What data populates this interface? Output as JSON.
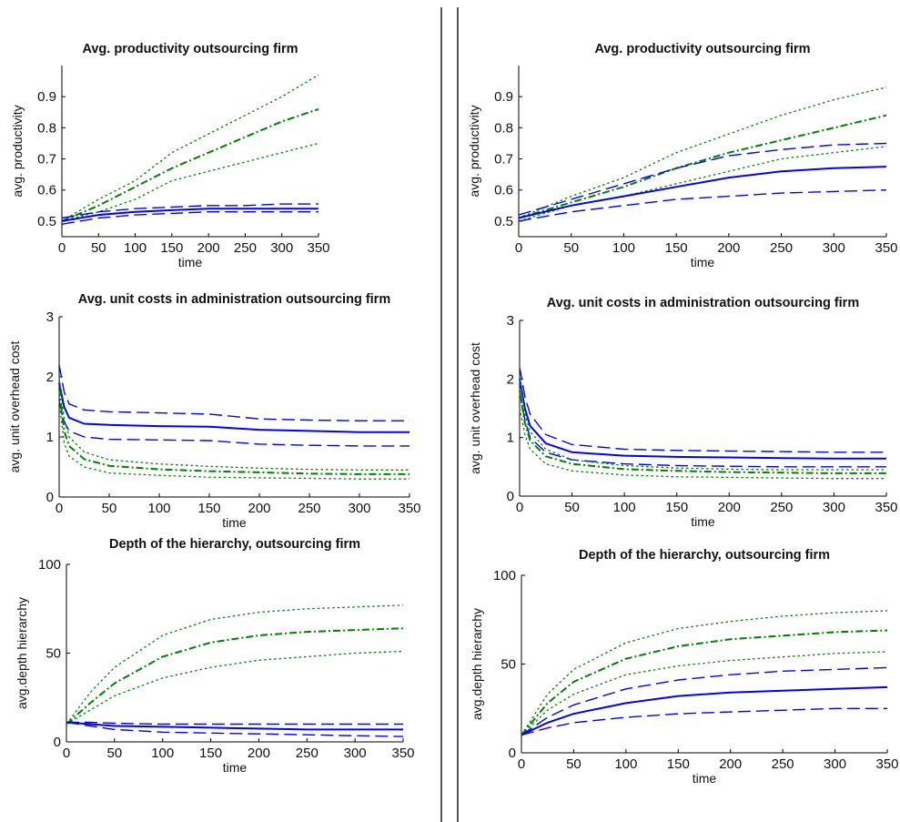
{
  "colors": {
    "model_a": "#0000ff",
    "model_b": "#008000",
    "separator": "#555555"
  },
  "chart_data": [
    {
      "type": "line",
      "panel": "left-top",
      "title": "Avg. productivity outsourcing firm",
      "xlabel": "time",
      "ylabel": "avg. productivity",
      "xlim": [
        0,
        350
      ],
      "ylim": [
        0.45,
        1.0
      ],
      "xticks": [
        0,
        50,
        100,
        150,
        200,
        250,
        300,
        350
      ],
      "yticks": [
        0.5,
        0.6,
        0.7,
        0.8,
        0.9
      ],
      "grid": false,
      "x": [
        0,
        50,
        100,
        150,
        200,
        250,
        300,
        350
      ],
      "series": [
        {
          "color": "#008000",
          "style": "dotted",
          "values": [
            0.5,
            0.57,
            0.63,
            0.72,
            0.78,
            0.84,
            0.9,
            0.97
          ]
        },
        {
          "color": "#008000",
          "style": "dashdot",
          "values": [
            0.5,
            0.55,
            0.61,
            0.67,
            0.72,
            0.77,
            0.82,
            0.86
          ]
        },
        {
          "color": "#008000",
          "style": "dotted",
          "values": [
            0.5,
            0.53,
            0.57,
            0.63,
            0.66,
            0.69,
            0.72,
            0.75
          ]
        },
        {
          "color": "#0000ff",
          "style": "dashed",
          "values": [
            0.51,
            0.53,
            0.54,
            0.545,
            0.55,
            0.55,
            0.555,
            0.555
          ]
        },
        {
          "color": "#0000ff",
          "style": "solid",
          "values": [
            0.5,
            0.52,
            0.53,
            0.535,
            0.54,
            0.54,
            0.54,
            0.54
          ]
        },
        {
          "color": "#0000ff",
          "style": "dashed",
          "values": [
            0.49,
            0.51,
            0.52,
            0.525,
            0.53,
            0.53,
            0.53,
            0.53
          ]
        }
      ]
    },
    {
      "type": "line",
      "panel": "right-top",
      "title": "Avg. productivity outsourcing firm",
      "xlabel": "time",
      "ylabel": "avg. productivity",
      "xlim": [
        0,
        350
      ],
      "ylim": [
        0.45,
        1.0
      ],
      "xticks": [
        0,
        50,
        100,
        150,
        200,
        250,
        300,
        350
      ],
      "yticks": [
        0.5,
        0.6,
        0.7,
        0.8,
        0.9
      ],
      "grid": false,
      "x": [
        0,
        50,
        100,
        150,
        200,
        250,
        300,
        350
      ],
      "series": [
        {
          "color": "#008000",
          "style": "dotted",
          "values": [
            0.51,
            0.58,
            0.64,
            0.72,
            0.78,
            0.84,
            0.89,
            0.93
          ]
        },
        {
          "color": "#008000",
          "style": "dashdot",
          "values": [
            0.51,
            0.56,
            0.61,
            0.67,
            0.72,
            0.76,
            0.8,
            0.84
          ]
        },
        {
          "color": "#0000ff",
          "style": "dashed",
          "values": [
            0.52,
            0.57,
            0.62,
            0.67,
            0.71,
            0.73,
            0.745,
            0.75
          ]
        },
        {
          "color": "#008000",
          "style": "dotted",
          "values": [
            0.5,
            0.55,
            0.58,
            0.62,
            0.66,
            0.7,
            0.72,
            0.74
          ]
        },
        {
          "color": "#0000ff",
          "style": "solid",
          "values": [
            0.51,
            0.55,
            0.58,
            0.61,
            0.64,
            0.66,
            0.67,
            0.675
          ]
        },
        {
          "color": "#0000ff",
          "style": "dashed",
          "values": [
            0.5,
            0.53,
            0.55,
            0.57,
            0.58,
            0.59,
            0.595,
            0.6
          ]
        }
      ]
    },
    {
      "type": "line",
      "panel": "left-mid",
      "title": "Avg. unit costs in administration outsourcing firm",
      "xlabel": "time",
      "ylabel": "avg. unit overhead cost",
      "xlim": [
        0,
        350
      ],
      "ylim": [
        0,
        3
      ],
      "xticks": [
        0,
        50,
        100,
        150,
        200,
        250,
        300,
        350
      ],
      "yticks": [
        0,
        1,
        2,
        3
      ],
      "grid": false,
      "x": [
        0,
        5,
        10,
        25,
        50,
        100,
        150,
        200,
        250,
        300,
        350
      ],
      "series": [
        {
          "color": "#0000ff",
          "style": "dashed",
          "values": [
            2.2,
            1.75,
            1.55,
            1.45,
            1.42,
            1.4,
            1.38,
            1.3,
            1.28,
            1.27,
            1.27
          ]
        },
        {
          "color": "#0000ff",
          "style": "solid",
          "values": [
            1.9,
            1.5,
            1.32,
            1.22,
            1.2,
            1.18,
            1.17,
            1.12,
            1.1,
            1.08,
            1.08
          ]
        },
        {
          "color": "#0000ff",
          "style": "dashed",
          "values": [
            1.6,
            1.25,
            1.1,
            1.0,
            0.96,
            0.95,
            0.94,
            0.88,
            0.86,
            0.85,
            0.85
          ]
        },
        {
          "color": "#008000",
          "style": "dotted",
          "values": [
            2.0,
            1.3,
            1.0,
            0.75,
            0.62,
            0.55,
            0.51,
            0.48,
            0.46,
            0.45,
            0.45
          ]
        },
        {
          "color": "#008000",
          "style": "dashdot",
          "values": [
            1.8,
            1.1,
            0.85,
            0.63,
            0.52,
            0.46,
            0.43,
            0.41,
            0.39,
            0.38,
            0.38
          ]
        },
        {
          "color": "#008000",
          "style": "dotted",
          "values": [
            1.6,
            0.9,
            0.68,
            0.5,
            0.4,
            0.36,
            0.33,
            0.32,
            0.31,
            0.3,
            0.3
          ]
        }
      ]
    },
    {
      "type": "line",
      "panel": "right-mid",
      "title": "Avg. unit costs in administration outsourcing firm",
      "xlabel": "time",
      "ylabel": "avg. unit overhead cost",
      "xlim": [
        0,
        350
      ],
      "ylim": [
        0,
        3
      ],
      "xticks": [
        0,
        50,
        100,
        150,
        200,
        250,
        300,
        350
      ],
      "yticks": [
        0,
        1,
        2,
        3
      ],
      "grid": false,
      "x": [
        0,
        5,
        10,
        25,
        50,
        100,
        150,
        200,
        250,
        300,
        350
      ],
      "series": [
        {
          "color": "#0000ff",
          "style": "dashed",
          "values": [
            2.2,
            1.7,
            1.4,
            1.05,
            0.88,
            0.8,
            0.78,
            0.77,
            0.76,
            0.75,
            0.75
          ]
        },
        {
          "color": "#0000ff",
          "style": "solid",
          "values": [
            2.0,
            1.5,
            1.2,
            0.9,
            0.75,
            0.69,
            0.67,
            0.66,
            0.65,
            0.64,
            0.64
          ]
        },
        {
          "color": "#0000ff",
          "style": "dashed",
          "values": [
            1.8,
            1.3,
            1.0,
            0.75,
            0.62,
            0.55,
            0.52,
            0.51,
            0.5,
            0.5,
            0.5
          ]
        },
        {
          "color": "#008000",
          "style": "dotted",
          "values": [
            2.0,
            1.4,
            1.1,
            0.8,
            0.62,
            0.52,
            0.48,
            0.46,
            0.45,
            0.45,
            0.45
          ]
        },
        {
          "color": "#008000",
          "style": "dashdot",
          "values": [
            1.8,
            1.25,
            0.95,
            0.68,
            0.55,
            0.46,
            0.43,
            0.41,
            0.4,
            0.39,
            0.39
          ]
        },
        {
          "color": "#008000",
          "style": "dotted",
          "values": [
            1.5,
            1.05,
            0.8,
            0.55,
            0.43,
            0.36,
            0.33,
            0.32,
            0.31,
            0.3,
            0.3
          ]
        }
      ]
    },
    {
      "type": "line",
      "panel": "left-bottom",
      "title": "Depth of the hierarchy, outsourcing firm",
      "xlabel": "time",
      "ylabel": "avg.depth hierarchy",
      "xlim": [
        0,
        350
      ],
      "ylim": [
        0,
        100
      ],
      "xticks": [
        0,
        50,
        100,
        150,
        200,
        250,
        300,
        350
      ],
      "yticks": [
        0,
        50,
        100
      ],
      "grid": false,
      "x": [
        0,
        25,
        50,
        100,
        150,
        200,
        250,
        300,
        350
      ],
      "series": [
        {
          "color": "#008000",
          "style": "dotted",
          "values": [
            10,
            28,
            42,
            60,
            69,
            73,
            75,
            76,
            77
          ]
        },
        {
          "color": "#008000",
          "style": "dashdot",
          "values": [
            10,
            22,
            33,
            48,
            56,
            60,
            62,
            63,
            64
          ]
        },
        {
          "color": "#008000",
          "style": "dotted",
          "values": [
            10,
            18,
            26,
            36,
            42,
            46,
            48,
            50,
            51
          ]
        },
        {
          "color": "#0000ff",
          "style": "dashed",
          "values": [
            11,
            11,
            10.5,
            10,
            10,
            10,
            10,
            10,
            10
          ]
        },
        {
          "color": "#0000ff",
          "style": "solid",
          "values": [
            11,
            10,
            9,
            8.5,
            8,
            7.5,
            7,
            7,
            7
          ]
        },
        {
          "color": "#0000ff",
          "style": "dashed",
          "values": [
            11,
            9,
            7,
            5.5,
            5,
            4.5,
            4,
            3.5,
            3
          ]
        }
      ]
    },
    {
      "type": "line",
      "panel": "right-bottom",
      "title": "Depth of the hierarchy, outsourcing firm",
      "xlabel": "time",
      "ylabel": "avg.depth hierarchy",
      "xlim": [
        0,
        350
      ],
      "ylim": [
        0,
        100
      ],
      "xticks": [
        0,
        50,
        100,
        150,
        200,
        250,
        300,
        350
      ],
      "yticks": [
        0,
        50,
        100
      ],
      "grid": false,
      "x": [
        0,
        25,
        50,
        100,
        150,
        200,
        250,
        300,
        350
      ],
      "series": [
        {
          "color": "#008000",
          "style": "dotted",
          "values": [
            10,
            33,
            47,
            62,
            70,
            74,
            77,
            79,
            80
          ]
        },
        {
          "color": "#008000",
          "style": "dashdot",
          "values": [
            10,
            28,
            40,
            53,
            60,
            64,
            66,
            68,
            69
          ]
        },
        {
          "color": "#008000",
          "style": "dotted",
          "values": [
            10,
            24,
            33,
            44,
            49,
            52,
            54,
            56,
            57
          ]
        },
        {
          "color": "#0000ff",
          "style": "dashed",
          "values": [
            10,
            20,
            27,
            36,
            41,
            44,
            46,
            47,
            48
          ]
        },
        {
          "color": "#0000ff",
          "style": "solid",
          "values": [
            10,
            17,
            22,
            28,
            32,
            34,
            35,
            36,
            37
          ]
        },
        {
          "color": "#0000ff",
          "style": "dashed",
          "values": [
            10,
            14,
            17,
            20,
            22,
            23,
            24,
            25,
            25
          ]
        }
      ]
    }
  ]
}
